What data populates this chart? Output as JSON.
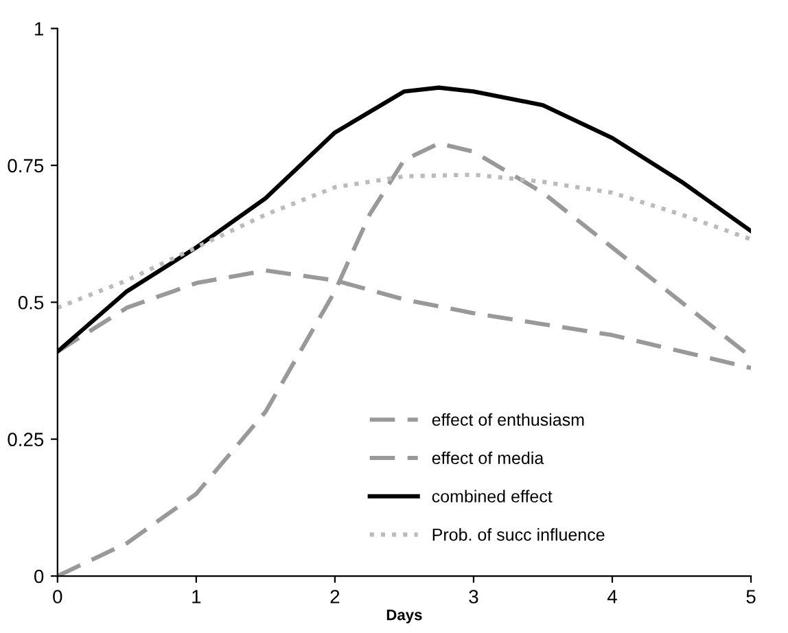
{
  "chart_data": {
    "type": "line",
    "xlabel": "Days",
    "xlim": [
      0,
      5
    ],
    "xticks": [
      0,
      1,
      2,
      3,
      4,
      5
    ],
    "ylim": [
      0,
      1
    ],
    "yticks": [
      0,
      0.25,
      0.5,
      0.75,
      1
    ],
    "grid": false,
    "legend": "bottom",
    "marker": "none",
    "series": [
      {
        "name": "effect of enthusiasm",
        "color": "#999999",
        "line_style": "dashed",
        "x": [
          0,
          0.5,
          1,
          1.5,
          2,
          2.5,
          3,
          3.5,
          4,
          4.5,
          5
        ],
        "values": [
          0.41,
          0.49,
          0.535,
          0.558,
          0.54,
          0.505,
          0.48,
          0.46,
          0.44,
          0.41,
          0.38
        ]
      },
      {
        "name": "effect of media",
        "color": "#999999",
        "line_style": "dashed",
        "x": [
          0,
          0.5,
          1,
          1.5,
          2,
          2.25,
          2.5,
          2.75,
          3,
          3.5,
          4,
          4.5,
          5
        ],
        "values": [
          0,
          0.06,
          0.15,
          0.3,
          0.52,
          0.66,
          0.76,
          0.79,
          0.775,
          0.7,
          0.6,
          0.5,
          0.4
        ]
      },
      {
        "name": "combined effect",
        "color": "#000000",
        "line_style": "solid",
        "x": [
          0,
          0.5,
          1,
          1.5,
          2,
          2.5,
          2.75,
          3,
          3.5,
          4,
          4.5,
          5
        ],
        "values": [
          0.41,
          0.52,
          0.6,
          0.69,
          0.81,
          0.885,
          0.892,
          0.885,
          0.86,
          0.8,
          0.72,
          0.63
        ]
      },
      {
        "name": "Prob. of succ influence",
        "color": "#bbbbbb",
        "line_style": "dotted",
        "x": [
          0,
          0.5,
          1,
          1.5,
          2,
          2.5,
          3,
          3.5,
          4,
          4.5,
          5
        ],
        "values": [
          0.49,
          0.54,
          0.6,
          0.66,
          0.71,
          0.73,
          0.733,
          0.72,
          0.7,
          0.66,
          0.615
        ]
      }
    ]
  }
}
